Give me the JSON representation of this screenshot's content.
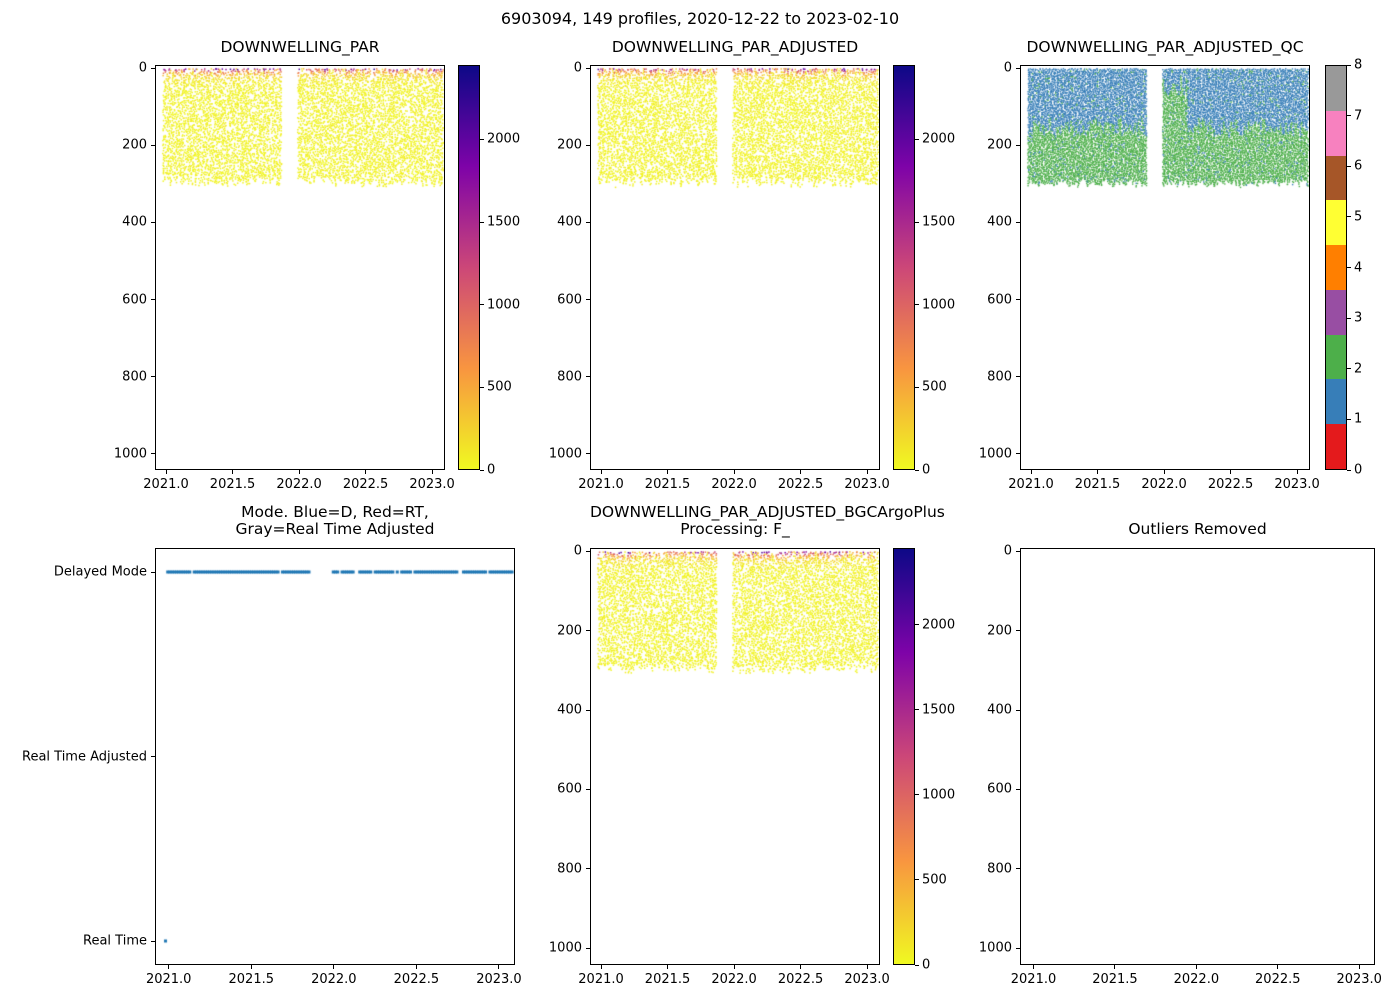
{
  "figure": {
    "suptitle": "6903094, 149 profiles, 2020-12-22 to 2023-02-10",
    "background_color": "#ffffff"
  },
  "palette": {
    "plasma_stops": [
      "#0d0887",
      "#7e03a8",
      "#cc4778",
      "#f89540",
      "#f0f921"
    ],
    "qc_flag_colors": [
      "#e41a1c",
      "#377eb8",
      "#4daf4a",
      "#984ea3",
      "#ff7f00",
      "#ffff33",
      "#a65628",
      "#f781bf",
      "#999999"
    ],
    "mode_marker_color": "#1f77b4",
    "axis_color": "#000000",
    "text_color": "#000000"
  },
  "chart_data": [
    {
      "id": "downwelling_par",
      "type": "scatter",
      "title": "DOWNWELLING_PAR",
      "xlim": [
        2020.917,
        2023.097
      ],
      "ylim": [
        -8,
        1042
      ],
      "y_axis": "depth (m), 0 at top, increasing downward",
      "x_ticks": [
        "2021.0",
        "2021.5",
        "2022.0",
        "2022.5",
        "2023.0"
      ],
      "y_ticks": [
        "0",
        "200",
        "400",
        "600",
        "800",
        "1000"
      ],
      "colorbar": {
        "type": "continuous",
        "cmap": "plasma_r",
        "vmin": 0,
        "vmax": 2450,
        "ticks": [
          "0",
          "500",
          "1000",
          "1500",
          "2000"
        ]
      },
      "data_summary": {
        "n_profiles": 149,
        "time_start": 2020.975,
        "time_end": 2023.085,
        "profile_gap": [
          2021.875,
          2021.99
        ],
        "sampled_depth_range_m": [
          0,
          305
        ],
        "surface_value_max": 2400,
        "subsurface_value_range": [
          0,
          150
        ],
        "description": "Dense vertical profile columns 0-300 m; orange/red high PAR dots in top ~20 m, yellow low values below; no data deeper than ~305 m"
      }
    },
    {
      "id": "downwelling_par_adjusted",
      "type": "scatter",
      "title": "DOWNWELLING_PAR_ADJUSTED",
      "xlim": [
        2020.917,
        2023.097
      ],
      "ylim": [
        -8,
        1042
      ],
      "x_ticks": [
        "2021.0",
        "2021.5",
        "2022.0",
        "2022.5",
        "2023.0"
      ],
      "y_ticks": [
        "0",
        "200",
        "400",
        "600",
        "800",
        "1000"
      ],
      "colorbar": {
        "type": "continuous",
        "cmap": "plasma_r",
        "vmin": 0,
        "vmax": 2450,
        "ticks": [
          "0",
          "500",
          "1000",
          "1500",
          "2000"
        ]
      },
      "data_summary": {
        "n_profiles": 149,
        "time_start": 2020.975,
        "time_end": 2023.085,
        "profile_gap": [
          2021.875,
          2021.99
        ],
        "sampled_depth_range_m": [
          0,
          305
        ],
        "surface_value_max": 2400,
        "subsurface_value_range": [
          0,
          150
        ]
      }
    },
    {
      "id": "downwelling_par_adjusted_qc",
      "type": "scatter",
      "title": "DOWNWELLING_PAR_ADJUSTED_QC",
      "xlim": [
        2020.917,
        2023.097
      ],
      "ylim": [
        -8,
        1042
      ],
      "x_ticks": [
        "2021.0",
        "2021.5",
        "2022.0",
        "2022.5",
        "2023.0"
      ],
      "y_ticks": [
        "0",
        "200",
        "400",
        "600",
        "800",
        "1000"
      ],
      "colorbar": {
        "type": "discrete",
        "cmap": "Set1-9",
        "ticks": [
          "0",
          "1",
          "2",
          "3",
          "4",
          "5",
          "6",
          "7",
          "8"
        ]
      },
      "data_summary": {
        "n_profiles": 149,
        "time_start": 2020.975,
        "time_end": 2023.085,
        "profile_gap": [
          2021.875,
          2021.99
        ],
        "qc_above_boundary": 1,
        "qc_below_boundary": 2,
        "typical_boundary_depth_m": 150,
        "green_block_time": [
          2021.93,
          2022.18
        ],
        "description": "QC flag 1 (blue) in upper ~150 m, QC flag 2 (green) from ~150-300 m; around 2022.0 profiles are mostly flag 2 up to near surface"
      }
    },
    {
      "id": "mode",
      "type": "scatter-categorical",
      "title_lines": [
        "Mode. Blue=D, Red=RT,",
        "Gray=Real Time Adjusted"
      ],
      "xlim": [
        2020.917,
        2023.097
      ],
      "x_ticks": [
        "2021.0",
        "2021.5",
        "2022.0",
        "2022.5",
        "2023.0"
      ],
      "y_categories": [
        "Delayed Mode",
        "Real Time Adjusted",
        "Real Time"
      ],
      "data_summary": {
        "n_profiles": 149,
        "time_start": 2020.975,
        "time_end": 2023.085,
        "first_profile_mode": "Real Time",
        "remaining_profiles_mode": "Delayed Mode",
        "marker_color": "#1f77b4",
        "description": "Blue dashed marker line at Delayed Mode level across 2021.0-2023.05; single blue marker at Real Time level at ~2021.0"
      }
    },
    {
      "id": "downwelling_par_adjusted_bgcargoplus",
      "type": "scatter",
      "title_lines": [
        "DOWNWELLING_PAR_ADJUSTED_BGCArgoPlus",
        "Processing: F_"
      ],
      "xlim": [
        2020.917,
        2023.097
      ],
      "ylim": [
        -8,
        1042
      ],
      "x_ticks": [
        "2021.0",
        "2021.5",
        "2022.0",
        "2022.5",
        "2023.0"
      ],
      "y_ticks": [
        "0",
        "200",
        "400",
        "600",
        "800",
        "1000"
      ],
      "colorbar": {
        "type": "continuous",
        "cmap": "plasma_r",
        "vmin": 0,
        "vmax": 2450,
        "ticks": [
          "0",
          "500",
          "1000",
          "1500",
          "2000"
        ]
      },
      "data_summary": {
        "n_profiles": 149,
        "time_start": 2020.975,
        "time_end": 2023.085,
        "profile_gap": [
          2021.875,
          2021.99
        ],
        "sampled_depth_range_m": [
          0,
          305
        ],
        "surface_value_max": 2400,
        "subsurface_value_range": [
          0,
          150
        ]
      }
    },
    {
      "id": "outliers_removed",
      "type": "scatter",
      "title": "Outliers Removed",
      "xlim": [
        2020.917,
        2023.097
      ],
      "ylim": [
        -8,
        1042
      ],
      "x_ticks": [
        "2021.0",
        "2021.5",
        "2022.0",
        "2022.5",
        "2023.0"
      ],
      "y_ticks": [
        "0",
        "200",
        "400",
        "600",
        "800",
        "1000"
      ],
      "no_data": true,
      "data_summary": {
        "n_points": 0,
        "description": "Empty axes, no outliers plotted"
      }
    }
  ]
}
